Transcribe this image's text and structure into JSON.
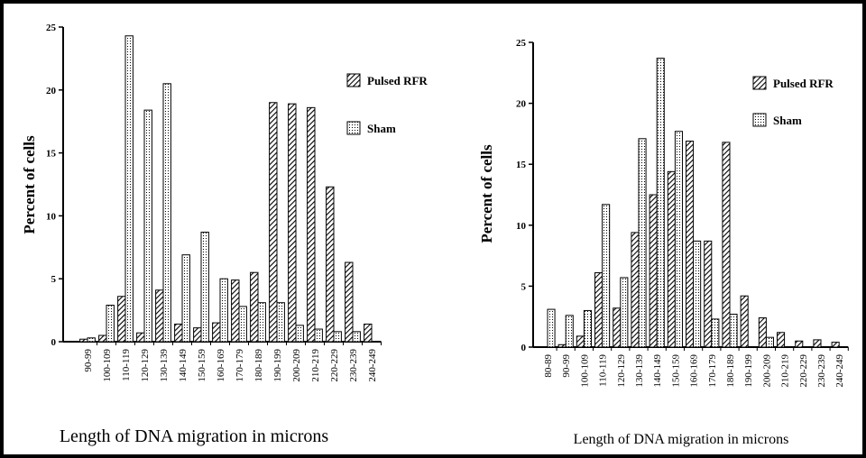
{
  "chart_data": [
    {
      "type": "bar",
      "ylabel": "Percent of cells",
      "xlabel": "Length of DNA migration in microns",
      "categories": [
        "90-99",
        "100-109",
        "110-119",
        "120-129",
        "130-139",
        "140-149",
        "150-159",
        "160-169",
        "170-179",
        "180-189",
        "190-199",
        "200-209",
        "210-219",
        "220-229",
        "230-239",
        "240-249"
      ],
      "series": [
        {
          "name": "Pulsed RFR",
          "color": "#000000",
          "pattern": "hatch",
          "values": [
            0.2,
            0.5,
            3.6,
            0.7,
            4.1,
            1.4,
            1.1,
            1.5,
            4.9,
            5.5,
            19.0,
            18.9,
            18.6,
            12.3,
            6.3,
            1.4
          ]
        },
        {
          "name": "Sham",
          "color": "#000000",
          "pattern": "dots",
          "values": [
            0.3,
            2.9,
            24.3,
            18.4,
            20.5,
            6.9,
            8.7,
            5.0,
            2.8,
            3.1,
            3.1,
            1.3,
            1.0,
            0.8,
            0.8,
            0
          ]
        }
      ],
      "ylim": [
        0,
        25
      ],
      "yticks": [
        0,
        5,
        10,
        15,
        20,
        25
      ]
    },
    {
      "type": "bar",
      "ylabel": "Percent of cells",
      "xlabel": "Length of DNA migration in microns",
      "categories": [
        "80-89",
        "90-99",
        "100-109",
        "110-119",
        "120-129",
        "130-139",
        "140-149",
        "150-159",
        "160-169",
        "170-179",
        "180-189",
        "190-199",
        "200-209",
        "210-219",
        "220-229",
        "230-239",
        "240-249"
      ],
      "series": [
        {
          "name": "Pulsed RFR",
          "color": "#000000",
          "pattern": "hatch",
          "values": [
            0,
            0.2,
            0.9,
            6.1,
            3.2,
            9.4,
            12.5,
            14.4,
            16.9,
            8.7,
            16.8,
            4.2,
            2.4,
            1.2,
            0.5,
            0.6,
            0.4
          ]
        },
        {
          "name": "Sham",
          "color": "#000000",
          "pattern": "dots",
          "values": [
            3.1,
            2.6,
            3.0,
            11.7,
            5.7,
            17.1,
            23.7,
            17.7,
            8.7,
            2.3,
            2.7,
            0,
            0.8,
            0,
            0,
            0,
            0
          ]
        }
      ],
      "ylim": [
        0,
        25
      ],
      "yticks": [
        0,
        5,
        10,
        15,
        20,
        25
      ]
    }
  ]
}
